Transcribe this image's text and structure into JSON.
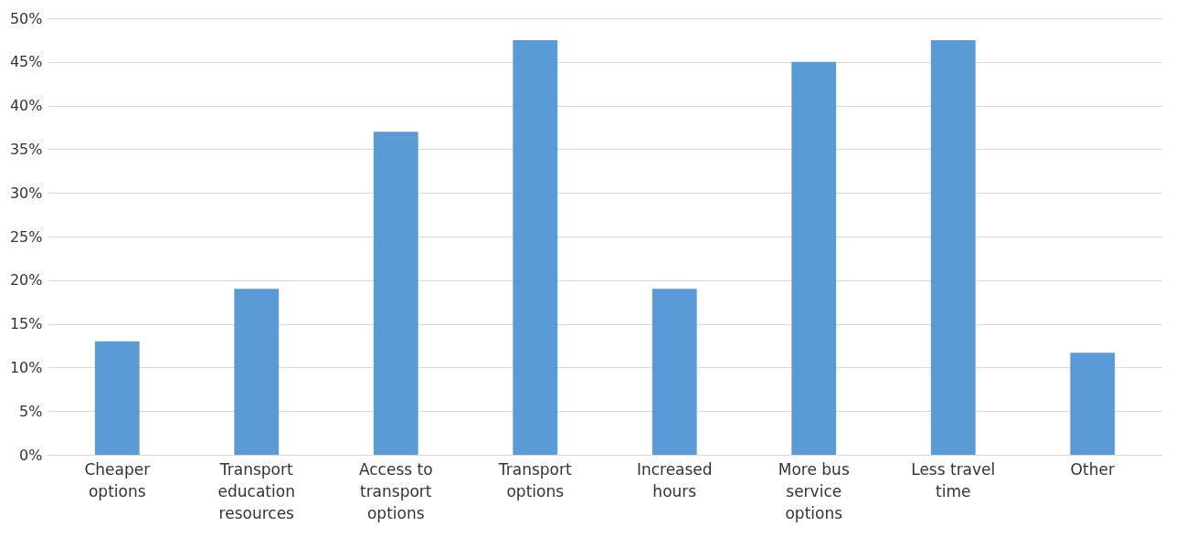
{
  "chart_data": {
    "type": "bar",
    "categories": [
      "Cheaper options",
      "Transport education resources",
      "Access to transport options",
      "Transport options",
      "Increased hours",
      "More bus service options",
      "Less travel time",
      "Other"
    ],
    "values": [
      13,
      19,
      37,
      47.5,
      19,
      45,
      47.5,
      11.7
    ],
    "color": "#5b9bd5",
    "ylim": [
      0,
      50
    ],
    "yticks": [
      {
        "value": 0,
        "label": "0%"
      },
      {
        "value": 5,
        "label": "5%"
      },
      {
        "value": 10,
        "label": "10%"
      },
      {
        "value": 15,
        "label": "15%"
      },
      {
        "value": 20,
        "label": "20%"
      },
      {
        "value": 25,
        "label": "25%"
      },
      {
        "value": 30,
        "label": "30%"
      },
      {
        "value": 35,
        "label": "35%"
      },
      {
        "value": 40,
        "label": "40%"
      },
      {
        "value": 45,
        "label": "45%"
      },
      {
        "value": 50,
        "label": "50%"
      }
    ],
    "grid": "y"
  }
}
